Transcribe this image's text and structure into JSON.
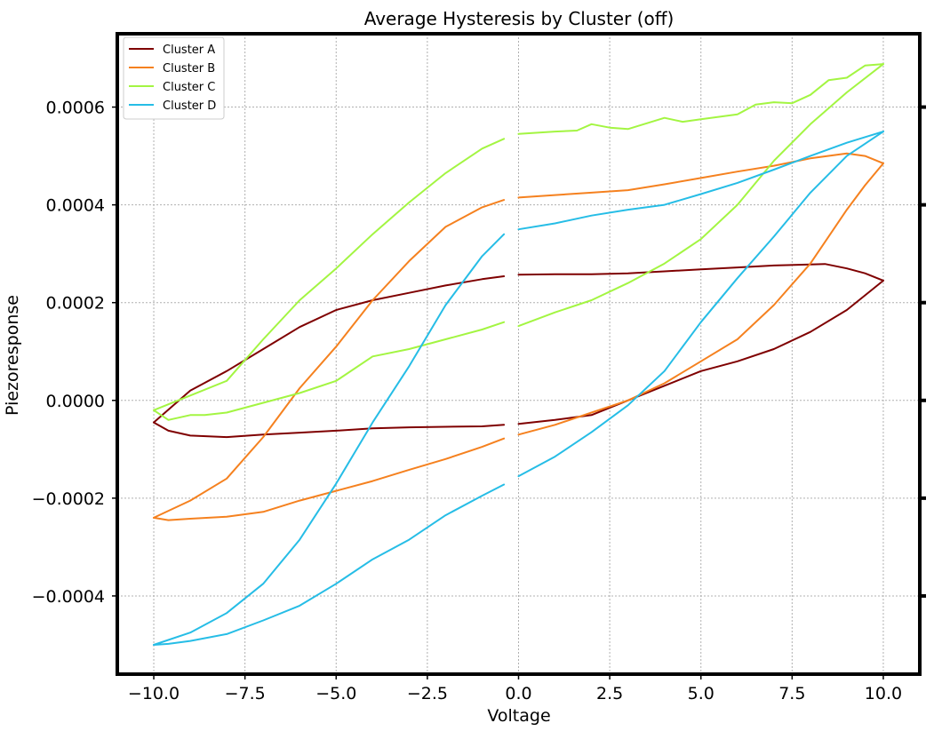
{
  "chart_data": {
    "type": "line",
    "title": "Average Hysteresis by Cluster (off)",
    "xlabel": "Voltage",
    "ylabel": "Piezoresponse",
    "xlim": [
      -11,
      11
    ],
    "ylim": [
      -0.00056,
      0.00075
    ],
    "xticks": [
      -10,
      -7.5,
      -5,
      -2.5,
      0,
      2.5,
      5,
      7.5,
      10
    ],
    "xtick_labels": [
      "−10.0",
      "−7.5",
      "−5.0",
      "−2.5",
      "0.0",
      "2.5",
      "5.0",
      "7.5",
      "10.0"
    ],
    "yticks": [
      -0.0004,
      -0.0002,
      0,
      0.0002,
      0.0004,
      0.0006
    ],
    "ytick_labels": [
      "−0.0004",
      "−0.0002",
      "0.0000",
      "0.0002",
      "0.0004",
      "0.0006"
    ],
    "grid": true,
    "legend_position": "top-left",
    "series": [
      {
        "name": "Cluster A",
        "color": "#7f0000",
        "segments": [
          {
            "x": [
              -0.4,
              -1.0,
              -2.0,
              -3.0,
              -4.0,
              -5.0,
              -6.0,
              -7.0,
              -8.0,
              -9.0,
              -9.6,
              -10.0
            ],
            "y": [
              -5e-05,
              -5.3e-05,
              -5.4e-05,
              -5.5e-05,
              -5.7e-05,
              -6.2e-05,
              -6.6e-05,
              -7e-05,
              -7.5e-05,
              -7.2e-05,
              -6.2e-05,
              -4.5e-05
            ]
          },
          {
            "x": [
              -10.0,
              -9.0,
              -8.0,
              -7.0,
              -6.0,
              -5.0,
              -4.0,
              -3.0,
              -2.0,
              -1.0,
              -0.4
            ],
            "y": [
              -4.5e-05,
              2e-05,
              6e-05,
              0.000105,
              0.00015,
              0.000185,
              0.000205,
              0.00022,
              0.000235,
              0.000248,
              0.000254
            ]
          },
          {
            "x": [
              0.0,
              1.0,
              2.0,
              3.0,
              4.0,
              5.0,
              6.0,
              7.0,
              8.0,
              8.4,
              9.0,
              9.5,
              10.0
            ],
            "y": [
              0.000257,
              0.000258,
              0.000258,
              0.00026,
              0.000264,
              0.000268,
              0.000272,
              0.000276,
              0.000278,
              0.000279,
              0.00027,
              0.00026,
              0.000245
            ]
          },
          {
            "x": [
              10.0,
              9.5,
              9.0,
              8.0,
              7.0,
              6.0,
              5.0,
              4.0,
              3.0,
              2.0,
              1.0,
              0.0
            ],
            "y": [
              0.000245,
              0.000215,
              0.000185,
              0.00014,
              0.000105,
              8e-05,
              6e-05,
              3e-05,
              0.0,
              -3e-05,
              -4e-05,
              -4.8e-05
            ]
          }
        ]
      },
      {
        "name": "Cluster B",
        "color": "#f5811f",
        "segments": [
          {
            "x": [
              -0.4,
              -1.0,
              -2.0,
              -3.0,
              -4.0,
              -5.0,
              -6.0,
              -7.0,
              -8.0,
              -9.0,
              -9.6,
              -10.0
            ],
            "y": [
              -7.8e-05,
              -9.5e-05,
              -0.00012,
              -0.000142,
              -0.000165,
              -0.000185,
              -0.000205,
              -0.000228,
              -0.000238,
              -0.000242,
              -0.000245,
              -0.00024
            ]
          },
          {
            "x": [
              -10.0,
              -9.0,
              -8.0,
              -7.0,
              -6.0,
              -5.0,
              -4.0,
              -3.0,
              -2.0,
              -1.0,
              -0.4
            ],
            "y": [
              -0.00024,
              -0.000205,
              -0.00016,
              -7.5e-05,
              2.5e-05,
              0.00011,
              0.000205,
              0.000285,
              0.000355,
              0.000395,
              0.00041
            ]
          },
          {
            "x": [
              0.0,
              1.0,
              2.0,
              3.0,
              4.0,
              5.0,
              6.0,
              7.0,
              8.0,
              9.0,
              9.5,
              10.0
            ],
            "y": [
              0.000415,
              0.00042,
              0.000425,
              0.00043,
              0.000442,
              0.000455,
              0.000468,
              0.00048,
              0.000495,
              0.000505,
              0.0005,
              0.000485
            ]
          },
          {
            "x": [
              10.0,
              9.5,
              9.0,
              8.0,
              7.0,
              6.0,
              5.0,
              4.0,
              3.0,
              2.0,
              1.0,
              0.0
            ],
            "y": [
              0.000485,
              0.00044,
              0.00039,
              0.00028,
              0.000195,
              0.000125,
              8e-05,
              3.5e-05,
              0.0,
              -2.5e-05,
              -5e-05,
              -7e-05
            ]
          }
        ]
      },
      {
        "name": "Cluster C",
        "color": "#a3f542",
        "segments": [
          {
            "x": [
              -0.4,
              -1.0,
              -2.0,
              -3.0,
              -4.0,
              -5.0,
              -6.0,
              -7.0,
              -8.0,
              -8.6,
              -9.0,
              -9.6,
              -10.0
            ],
            "y": [
              0.00016,
              0.000145,
              0.000125,
              0.000105,
              9e-05,
              4e-05,
              1.5e-05,
              -5e-06,
              -2.5e-05,
              -3e-05,
              -3e-05,
              -4e-05,
              -2e-05
            ]
          },
          {
            "x": [
              -10.0,
              -9.0,
              -8.0,
              -7.0,
              -6.0,
              -5.0,
              -4.0,
              -3.0,
              -2.0,
              -1.0,
              -0.4
            ],
            "y": [
              -2e-05,
              1e-05,
              4e-05,
              0.000125,
              0.000205,
              0.00027,
              0.00034,
              0.000405,
              0.000465,
              0.000515,
              0.000535
            ]
          },
          {
            "x": [
              0.0,
              1.0,
              1.6,
              2.0,
              2.5,
              3.0,
              4.0,
              4.5,
              5.0,
              6.0,
              6.5,
              7.0,
              7.5,
              8.0,
              8.5,
              9.0,
              9.5,
              10.0
            ],
            "y": [
              0.000545,
              0.00055,
              0.000552,
              0.000565,
              0.000558,
              0.000555,
              0.000578,
              0.00057,
              0.000575,
              0.000585,
              0.000605,
              0.00061,
              0.000608,
              0.000625,
              0.000655,
              0.00066,
              0.000685,
              0.000688
            ]
          },
          {
            "x": [
              10.0,
              9.0,
              8.0,
              7.0,
              6.0,
              5.0,
              4.0,
              3.0,
              2.0,
              1.0,
              0.0
            ],
            "y": [
              0.000688,
              0.00063,
              0.000565,
              0.00049,
              0.0004,
              0.00033,
              0.00028,
              0.00024,
              0.000205,
              0.00018,
              0.000152
            ]
          }
        ]
      },
      {
        "name": "Cluster D",
        "color": "#26bde6",
        "segments": [
          {
            "x": [
              -0.4,
              -1.0,
              -2.0,
              -3.0,
              -4.0,
              -5.0,
              -6.0,
              -7.0,
              -8.0,
              -9.0,
              -9.6,
              -10.0
            ],
            "y": [
              -0.000172,
              -0.000195,
              -0.000235,
              -0.000285,
              -0.000325,
              -0.000375,
              -0.00042,
              -0.00045,
              -0.000478,
              -0.000492,
              -0.000498,
              -0.0005
            ]
          },
          {
            "x": [
              -10.0,
              -9.0,
              -8.0,
              -7.0,
              -6.0,
              -5.0,
              -4.0,
              -3.0,
              -2.0,
              -1.0,
              -0.4
            ],
            "y": [
              -0.0005,
              -0.000475,
              -0.000435,
              -0.000375,
              -0.000285,
              -0.00017,
              -4.5e-05,
              7e-05,
              0.000195,
              0.000295,
              0.00034
            ]
          },
          {
            "x": [
              0.0,
              1.0,
              2.0,
              3.0,
              4.0,
              5.0,
              6.0,
              7.0,
              8.0,
              9.0,
              10.0
            ],
            "y": [
              0.00035,
              0.000362,
              0.000378,
              0.00039,
              0.0004,
              0.000422,
              0.000445,
              0.000472,
              0.0005,
              0.000527,
              0.00055
            ]
          },
          {
            "x": [
              10.0,
              9.0,
              8.0,
              7.0,
              6.0,
              5.0,
              4.0,
              3.0,
              2.0,
              1.0,
              0.0
            ],
            "y": [
              0.00055,
              0.0005,
              0.000425,
              0.000335,
              0.00025,
              0.00016,
              6e-05,
              -1e-05,
              -6.5e-05,
              -0.000115,
              -0.000155
            ]
          }
        ]
      }
    ]
  }
}
